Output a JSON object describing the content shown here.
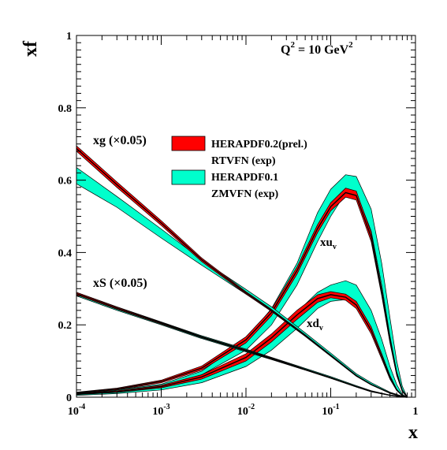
{
  "chart_data": {
    "type": "area",
    "title": "Q² = 10 GeV²",
    "title_parts": {
      "base": "Q",
      "sup1": "2",
      "mid": " = 10 GeV",
      "sup2": "2"
    },
    "xlabel": "x",
    "ylabel": "xf",
    "xscale": "log",
    "xlim": [
      0.0001,
      1
    ],
    "ylim": [
      0,
      1
    ],
    "grid": false,
    "legend_position": "upper-center",
    "x_ticks": [
      {
        "base": "10",
        "exp": "-4"
      },
      {
        "base": "10",
        "exp": "-3"
      },
      {
        "base": "10",
        "exp": "-2"
      },
      {
        "base": "10",
        "exp": "-1"
      },
      {
        "base": "1",
        "exp": ""
      }
    ],
    "y_ticks": [
      "0",
      "0.2",
      "0.4",
      "0.6",
      "0.8",
      "1"
    ],
    "colors": {
      "herapdf02": "#ff0000",
      "herapdf01": "#00ffcc",
      "outline": "#000000"
    },
    "legend": [
      {
        "line1": "HERAPDF0.2(prel.)",
        "line2": "RTVFN (exp)",
        "color": "#ff0000"
      },
      {
        "line1": "HERAPDF0.1",
        "line2": "ZMVFN (exp)",
        "color": "#00ffcc"
      }
    ],
    "annotations": {
      "xg": "xg (×0.05)",
      "xS": "xS (×0.05)",
      "xuv": {
        "base": "xu",
        "sub": "v"
      },
      "xdv": {
        "base": "xd",
        "sub": "v"
      }
    },
    "series": [
      {
        "key": "xuv_cyan",
        "x": [
          0.0001,
          0.0003,
          0.001,
          0.003,
          0.01,
          0.02,
          0.04,
          0.07,
          0.1,
          0.15,
          0.2,
          0.3,
          0.4,
          0.5,
          0.6,
          0.7,
          0.8
        ],
        "y_low": [
          0.008,
          0.015,
          0.03,
          0.062,
          0.13,
          0.2,
          0.31,
          0.43,
          0.5,
          0.565,
          0.565,
          0.46,
          0.31,
          0.17,
          0.07,
          0.02,
          0.0
        ],
        "y_high": [
          0.011,
          0.02,
          0.036,
          0.072,
          0.16,
          0.245,
          0.37,
          0.51,
          0.575,
          0.615,
          0.61,
          0.52,
          0.37,
          0.22,
          0.1,
          0.03,
          0.0
        ]
      },
      {
        "key": "xuv_red",
        "x": [
          0.0001,
          0.0003,
          0.001,
          0.003,
          0.01,
          0.02,
          0.04,
          0.07,
          0.1,
          0.15,
          0.2,
          0.3,
          0.4,
          0.5,
          0.6,
          0.7,
          0.8
        ],
        "y_low": [
          0.01,
          0.02,
          0.04,
          0.075,
          0.15,
          0.225,
          0.34,
          0.455,
          0.515,
          0.553,
          0.545,
          0.43,
          0.28,
          0.15,
          0.06,
          0.015,
          0.0
        ],
        "y_high": [
          0.014,
          0.025,
          0.047,
          0.086,
          0.167,
          0.243,
          0.36,
          0.477,
          0.538,
          0.578,
          0.57,
          0.455,
          0.3,
          0.165,
          0.07,
          0.02,
          0.0
        ]
      },
      {
        "key": "xdv_cyan",
        "x": [
          0.0001,
          0.0003,
          0.001,
          0.003,
          0.01,
          0.02,
          0.04,
          0.07,
          0.1,
          0.15,
          0.2,
          0.3,
          0.4,
          0.5,
          0.6,
          0.7,
          0.8
        ],
        "y_low": [
          0.005,
          0.01,
          0.02,
          0.04,
          0.085,
          0.13,
          0.19,
          0.245,
          0.265,
          0.27,
          0.255,
          0.19,
          0.12,
          0.06,
          0.022,
          0.005,
          0.0
        ],
        "y_high": [
          0.008,
          0.014,
          0.027,
          0.052,
          0.105,
          0.16,
          0.235,
          0.29,
          0.31,
          0.322,
          0.31,
          0.24,
          0.16,
          0.085,
          0.035,
          0.008,
          0.0
        ]
      },
      {
        "key": "xdv_red",
        "x": [
          0.0001,
          0.0003,
          0.001,
          0.003,
          0.01,
          0.02,
          0.04,
          0.07,
          0.1,
          0.15,
          0.2,
          0.3,
          0.4,
          0.5,
          0.6,
          0.7,
          0.8
        ],
        "y_low": [
          0.007,
          0.013,
          0.026,
          0.05,
          0.1,
          0.153,
          0.215,
          0.262,
          0.275,
          0.268,
          0.245,
          0.175,
          0.105,
          0.05,
          0.018,
          0.004,
          0.0
        ],
        "y_high": [
          0.01,
          0.018,
          0.033,
          0.062,
          0.12,
          0.175,
          0.24,
          0.283,
          0.292,
          0.285,
          0.265,
          0.195,
          0.12,
          0.06,
          0.022,
          0.005,
          0.0
        ]
      },
      {
        "key": "xg_cyan",
        "x": [
          0.0001,
          0.0003,
          0.001,
          0.003,
          0.01,
          0.02,
          0.05,
          0.1,
          0.2,
          0.3,
          0.5,
          0.7,
          0.8
        ],
        "y_low": [
          0.59,
          0.525,
          0.44,
          0.365,
          0.285,
          0.24,
          0.17,
          0.115,
          0.06,
          0.035,
          0.012,
          0.003,
          0.0
        ],
        "y_high": [
          0.635,
          0.555,
          0.465,
          0.38,
          0.298,
          0.25,
          0.178,
          0.122,
          0.065,
          0.04,
          0.014,
          0.003,
          0.0
        ]
      },
      {
        "key": "xg_red",
        "x": [
          0.0001,
          0.0003,
          0.001,
          0.003,
          0.01,
          0.02,
          0.05,
          0.1,
          0.2,
          0.3,
          0.5,
          0.7,
          0.8
        ],
        "y_low": [
          0.68,
          0.58,
          0.475,
          0.375,
          0.285,
          0.237,
          0.168,
          0.113,
          0.058,
          0.034,
          0.011,
          0.002,
          0.0
        ],
        "y_high": [
          0.695,
          0.595,
          0.488,
          0.385,
          0.292,
          0.243,
          0.173,
          0.117,
          0.061,
          0.036,
          0.012,
          0.002,
          0.0
        ]
      },
      {
        "key": "xS_cyan",
        "x": [
          0.0001,
          0.0003,
          0.001,
          0.003,
          0.01,
          0.02,
          0.05,
          0.1,
          0.2,
          0.3,
          0.5,
          0.7,
          0.8
        ],
        "y_low": [
          0.28,
          0.24,
          0.2,
          0.162,
          0.125,
          0.104,
          0.075,
          0.052,
          0.028,
          0.015,
          0.005,
          0.001,
          0.0
        ],
        "y_high": [
          0.29,
          0.25,
          0.208,
          0.17,
          0.133,
          0.11,
          0.08,
          0.057,
          0.032,
          0.018,
          0.006,
          0.001,
          0.0
        ]
      },
      {
        "key": "xS_red",
        "x": [
          0.0001,
          0.0003,
          0.001,
          0.003,
          0.01,
          0.02,
          0.05,
          0.1,
          0.2,
          0.3,
          0.5,
          0.7,
          0.8
        ],
        "y_low": [
          0.283,
          0.243,
          0.202,
          0.164,
          0.127,
          0.105,
          0.075,
          0.052,
          0.028,
          0.015,
          0.005,
          0.001,
          0.0
        ],
        "y_high": [
          0.29,
          0.249,
          0.207,
          0.168,
          0.131,
          0.109,
          0.078,
          0.055,
          0.03,
          0.017,
          0.006,
          0.001,
          0.0
        ]
      }
    ]
  }
}
